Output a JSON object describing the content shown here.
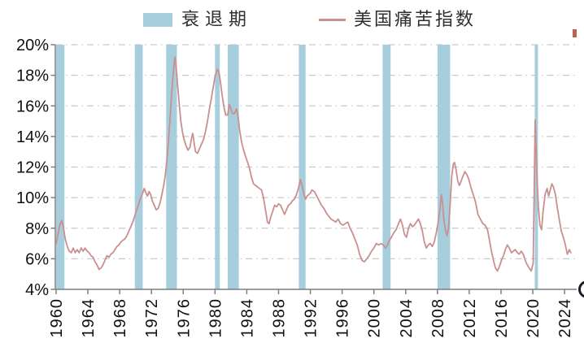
{
  "legend": {
    "recession_label": "衰退期",
    "series_label": "美国痛苦指数"
  },
  "chart_data": {
    "type": "line",
    "title": "",
    "xlabel": "",
    "ylabel": "",
    "y_unit": "%",
    "ylim": [
      4,
      20
    ],
    "y_ticks": [
      4,
      6,
      8,
      10,
      12,
      14,
      16,
      18,
      20
    ],
    "x_ticks": [
      1960,
      1964,
      1968,
      1972,
      1976,
      1980,
      1984,
      1988,
      1992,
      1996,
      2000,
      2004,
      2008,
      2012,
      2016,
      2020,
      2024
    ],
    "xlim": [
      1959.9,
      2025.5
    ],
    "grid": "horizontal-dash-dot",
    "legend_position": "top",
    "bands_name": "衰退期",
    "recession_bands": [
      [
        1960.0,
        1961.05
      ],
      [
        1969.9,
        1970.9
      ],
      [
        1973.85,
        1975.2
      ],
      [
        1980.0,
        1980.6
      ],
      [
        1981.6,
        1983.0
      ],
      [
        1990.55,
        1991.4
      ],
      [
        2001.1,
        2002.1
      ],
      [
        2008.0,
        2009.6
      ],
      [
        2020.25,
        2020.65
      ]
    ],
    "series": [
      {
        "name": "美国痛苦指数",
        "points": [
          [
            1960.0,
            7.0
          ],
          [
            1960.2,
            7.5
          ],
          [
            1960.45,
            8.2
          ],
          [
            1960.7,
            8.5
          ],
          [
            1960.9,
            8.1
          ],
          [
            1961.15,
            7.3
          ],
          [
            1961.4,
            6.8
          ],
          [
            1961.65,
            6.5
          ],
          [
            1961.9,
            6.4
          ],
          [
            1962.15,
            6.7
          ],
          [
            1962.4,
            6.4
          ],
          [
            1962.65,
            6.6
          ],
          [
            1962.9,
            6.4
          ],
          [
            1963.15,
            6.7
          ],
          [
            1963.4,
            6.5
          ],
          [
            1963.65,
            6.7
          ],
          [
            1963.9,
            6.5
          ],
          [
            1964.15,
            6.4
          ],
          [
            1964.4,
            6.2
          ],
          [
            1964.65,
            6.1
          ],
          [
            1964.9,
            5.8
          ],
          [
            1965.15,
            5.6
          ],
          [
            1965.4,
            5.3
          ],
          [
            1965.65,
            5.4
          ],
          [
            1965.9,
            5.6
          ],
          [
            1966.15,
            5.9
          ],
          [
            1966.4,
            6.2
          ],
          [
            1966.65,
            6.1
          ],
          [
            1966.9,
            6.3
          ],
          [
            1967.15,
            6.4
          ],
          [
            1967.4,
            6.6
          ],
          [
            1967.65,
            6.8
          ],
          [
            1967.9,
            6.9
          ],
          [
            1968.15,
            7.1
          ],
          [
            1968.4,
            7.2
          ],
          [
            1968.65,
            7.3
          ],
          [
            1968.9,
            7.5
          ],
          [
            1969.15,
            7.8
          ],
          [
            1969.4,
            8.1
          ],
          [
            1969.65,
            8.4
          ],
          [
            1969.9,
            8.8
          ],
          [
            1970.15,
            9.2
          ],
          [
            1970.4,
            9.6
          ],
          [
            1970.65,
            10.0
          ],
          [
            1970.9,
            10.3
          ],
          [
            1971.1,
            10.6
          ],
          [
            1971.3,
            10.3
          ],
          [
            1971.5,
            10.1
          ],
          [
            1971.7,
            10.4
          ],
          [
            1971.9,
            10.2
          ],
          [
            1972.1,
            9.8
          ],
          [
            1972.35,
            9.5
          ],
          [
            1972.6,
            9.2
          ],
          [
            1972.85,
            9.3
          ],
          [
            1973.1,
            9.7
          ],
          [
            1973.35,
            10.3
          ],
          [
            1973.55,
            10.8
          ],
          [
            1973.75,
            11.5
          ],
          [
            1973.95,
            12.5
          ],
          [
            1974.15,
            13.8
          ],
          [
            1974.35,
            15.3
          ],
          [
            1974.55,
            16.8
          ],
          [
            1974.75,
            18.2
          ],
          [
            1974.95,
            19.2
          ],
          [
            1975.1,
            18.6
          ],
          [
            1975.3,
            17.3
          ],
          [
            1975.5,
            16.1
          ],
          [
            1975.7,
            15.0
          ],
          [
            1975.9,
            14.3
          ],
          [
            1976.1,
            13.8
          ],
          [
            1976.35,
            13.4
          ],
          [
            1976.6,
            13.1
          ],
          [
            1976.85,
            13.3
          ],
          [
            1977.05,
            13.9
          ],
          [
            1977.2,
            14.2
          ],
          [
            1977.4,
            13.5
          ],
          [
            1977.55,
            13.0
          ],
          [
            1977.8,
            12.9
          ],
          [
            1978.05,
            13.2
          ],
          [
            1978.3,
            13.5
          ],
          [
            1978.55,
            13.8
          ],
          [
            1978.8,
            14.3
          ],
          [
            1979.05,
            15.0
          ],
          [
            1979.3,
            15.8
          ],
          [
            1979.55,
            16.5
          ],
          [
            1979.8,
            17.3
          ],
          [
            1980.0,
            17.9
          ],
          [
            1980.3,
            18.4
          ],
          [
            1980.5,
            18.2
          ],
          [
            1980.7,
            17.5
          ],
          [
            1980.9,
            16.7
          ],
          [
            1981.1,
            16.0
          ],
          [
            1981.35,
            15.4
          ],
          [
            1981.6,
            15.4
          ],
          [
            1981.8,
            16.1
          ],
          [
            1982.0,
            15.8
          ],
          [
            1982.2,
            15.5
          ],
          [
            1982.45,
            15.5
          ],
          [
            1982.7,
            15.8
          ],
          [
            1982.9,
            15.3
          ],
          [
            1983.1,
            14.4
          ],
          [
            1983.35,
            13.6
          ],
          [
            1983.6,
            13.1
          ],
          [
            1983.85,
            12.7
          ],
          [
            1984.1,
            12.3
          ],
          [
            1984.35,
            11.9
          ],
          [
            1984.6,
            11.3
          ],
          [
            1984.85,
            10.9
          ],
          [
            1985.1,
            10.8
          ],
          [
            1985.35,
            10.7
          ],
          [
            1985.6,
            10.6
          ],
          [
            1985.85,
            10.5
          ],
          [
            1986.1,
            10.0
          ],
          [
            1986.35,
            9.2
          ],
          [
            1986.6,
            8.4
          ],
          [
            1986.8,
            8.3
          ],
          [
            1987.0,
            8.7
          ],
          [
            1987.25,
            9.1
          ],
          [
            1987.5,
            9.5
          ],
          [
            1987.75,
            9.4
          ],
          [
            1988.0,
            9.6
          ],
          [
            1988.25,
            9.5
          ],
          [
            1988.5,
            9.2
          ],
          [
            1988.75,
            8.9
          ],
          [
            1989.0,
            9.2
          ],
          [
            1989.25,
            9.5
          ],
          [
            1989.5,
            9.6
          ],
          [
            1989.75,
            9.8
          ],
          [
            1990.0,
            9.9
          ],
          [
            1990.25,
            10.2
          ],
          [
            1990.5,
            10.6
          ],
          [
            1990.75,
            11.2
          ],
          [
            1991.0,
            10.7
          ],
          [
            1991.2,
            10.2
          ],
          [
            1991.4,
            9.9
          ],
          [
            1991.6,
            10.1
          ],
          [
            1991.8,
            10.2
          ],
          [
            1992.0,
            10.3
          ],
          [
            1992.2,
            10.5
          ],
          [
            1992.5,
            10.4
          ],
          [
            1992.8,
            10.1
          ],
          [
            1993.1,
            9.8
          ],
          [
            1993.4,
            9.5
          ],
          [
            1993.7,
            9.3
          ],
          [
            1994.0,
            9.0
          ],
          [
            1994.3,
            8.8
          ],
          [
            1994.6,
            8.6
          ],
          [
            1994.9,
            8.5
          ],
          [
            1995.2,
            8.4
          ],
          [
            1995.5,
            8.6
          ],
          [
            1995.8,
            8.3
          ],
          [
            1996.1,
            8.2
          ],
          [
            1996.4,
            8.3
          ],
          [
            1996.7,
            8.4
          ],
          [
            1997.0,
            8.0
          ],
          [
            1997.3,
            7.7
          ],
          [
            1997.6,
            7.3
          ],
          [
            1997.9,
            6.9
          ],
          [
            1998.2,
            6.3
          ],
          [
            1998.5,
            5.9
          ],
          [
            1998.8,
            5.8
          ],
          [
            1999.1,
            6.0
          ],
          [
            1999.4,
            6.2
          ],
          [
            1999.7,
            6.5
          ],
          [
            2000.0,
            6.7
          ],
          [
            2000.3,
            7.0
          ],
          [
            2000.6,
            6.9
          ],
          [
            2000.9,
            7.0
          ],
          [
            2001.2,
            6.9
          ],
          [
            2001.45,
            6.7
          ],
          [
            2001.7,
            6.9
          ],
          [
            2001.95,
            7.2
          ],
          [
            2002.2,
            7.4
          ],
          [
            2002.5,
            7.7
          ],
          [
            2002.8,
            7.9
          ],
          [
            2003.1,
            8.3
          ],
          [
            2003.35,
            8.6
          ],
          [
            2003.6,
            8.2
          ],
          [
            2003.85,
            7.6
          ],
          [
            2004.1,
            7.4
          ],
          [
            2004.35,
            8.0
          ],
          [
            2004.6,
            8.3
          ],
          [
            2004.85,
            8.1
          ],
          [
            2005.1,
            8.2
          ],
          [
            2005.35,
            8.4
          ],
          [
            2005.6,
            8.6
          ],
          [
            2005.85,
            8.3
          ],
          [
            2006.1,
            7.8
          ],
          [
            2006.35,
            7.1
          ],
          [
            2006.6,
            6.7
          ],
          [
            2006.85,
            6.9
          ],
          [
            2007.1,
            7.0
          ],
          [
            2007.35,
            6.8
          ],
          [
            2007.6,
            7.1
          ],
          [
            2007.85,
            7.7
          ],
          [
            2008.1,
            8.4
          ],
          [
            2008.3,
            9.2
          ],
          [
            2008.5,
            10.2
          ],
          [
            2008.65,
            9.6
          ],
          [
            2008.8,
            8.6
          ],
          [
            2009.0,
            7.9
          ],
          [
            2009.2,
            7.5
          ],
          [
            2009.4,
            8.0
          ],
          [
            2009.6,
            9.6
          ],
          [
            2009.8,
            11.4
          ],
          [
            2010.0,
            12.2
          ],
          [
            2010.15,
            12.3
          ],
          [
            2010.35,
            11.8
          ],
          [
            2010.55,
            11.1
          ],
          [
            2010.75,
            10.8
          ],
          [
            2011.0,
            11.1
          ],
          [
            2011.2,
            11.4
          ],
          [
            2011.45,
            11.7
          ],
          [
            2011.7,
            11.5
          ],
          [
            2011.95,
            11.2
          ],
          [
            2012.2,
            10.7
          ],
          [
            2012.5,
            10.2
          ],
          [
            2012.8,
            9.7
          ],
          [
            2013.1,
            8.9
          ],
          [
            2013.4,
            8.6
          ],
          [
            2013.7,
            8.3
          ],
          [
            2014.0,
            8.2
          ],
          [
            2014.3,
            7.9
          ],
          [
            2014.55,
            7.2
          ],
          [
            2014.8,
            6.5
          ],
          [
            2015.05,
            5.9
          ],
          [
            2015.3,
            5.4
          ],
          [
            2015.55,
            5.2
          ],
          [
            2015.8,
            5.5
          ],
          [
            2016.05,
            5.9
          ],
          [
            2016.3,
            6.2
          ],
          [
            2016.55,
            6.6
          ],
          [
            2016.8,
            6.9
          ],
          [
            2017.05,
            6.7
          ],
          [
            2017.3,
            6.4
          ],
          [
            2017.55,
            6.5
          ],
          [
            2017.8,
            6.6
          ],
          [
            2018.05,
            6.4
          ],
          [
            2018.3,
            6.3
          ],
          [
            2018.55,
            6.5
          ],
          [
            2018.8,
            6.3
          ],
          [
            2019.05,
            5.9
          ],
          [
            2019.3,
            5.6
          ],
          [
            2019.55,
            5.4
          ],
          [
            2019.8,
            5.2
          ],
          [
            2020.05,
            5.7
          ],
          [
            2020.3,
            15.1
          ],
          [
            2020.5,
            11.8
          ],
          [
            2020.7,
            9.4
          ],
          [
            2020.9,
            8.2
          ],
          [
            2021.1,
            7.9
          ],
          [
            2021.3,
            9.1
          ],
          [
            2021.55,
            10.2
          ],
          [
            2021.8,
            10.6
          ],
          [
            2022.0,
            10.1
          ],
          [
            2022.2,
            10.5
          ],
          [
            2022.4,
            10.9
          ],
          [
            2022.6,
            10.7
          ],
          [
            2022.85,
            10.2
          ],
          [
            2023.1,
            9.3
          ],
          [
            2023.35,
            8.5
          ],
          [
            2023.6,
            7.8
          ],
          [
            2023.85,
            7.4
          ],
          [
            2024.1,
            6.9
          ],
          [
            2024.35,
            6.3
          ],
          [
            2024.6,
            6.6
          ],
          [
            2024.8,
            6.4
          ]
        ]
      }
    ],
    "colors": {
      "band": "#a6cedd",
      "line": "#cb8f8f",
      "grid": "#c9c9c9",
      "axis": "#7f7f7f",
      "tick_text": "#111111"
    }
  },
  "artifacts": {
    "bottom_right_ring_color": "#191a26",
    "top_right_fragment_color": "#b5654e"
  }
}
